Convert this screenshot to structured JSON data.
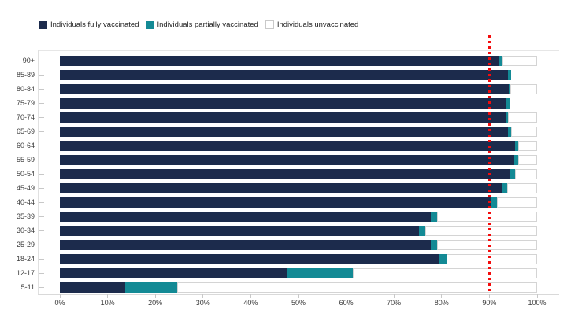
{
  "legend": {
    "items": [
      {
        "label": "Individuals fully vaccinated",
        "color": "#1c2b4c"
      },
      {
        "label": "Individuals partially vaccinated",
        "color": "#138a95"
      },
      {
        "label": "Individuals unvaccinated",
        "color": "#ffffff",
        "border": "#c9c9c9"
      }
    ]
  },
  "chart_data": {
    "type": "bar",
    "orientation": "horizontal",
    "stacked": true,
    "title": "",
    "categories": [
      "90+",
      "85-89",
      "80-84",
      "75-79",
      "70-74",
      "65-69",
      "60-64",
      "55-59",
      "50-54",
      "45-49",
      "40-44",
      "35-39",
      "30-34",
      "25-29",
      "18-24",
      "12-17",
      "5-11"
    ],
    "series": [
      {
        "name": "Individuals fully vaccinated",
        "color": "#1c2b4c",
        "values": [
          92.1,
          93.9,
          94.1,
          93.6,
          93.4,
          93.9,
          95.4,
          95.2,
          94.4,
          92.5,
          90.3,
          77.7,
          75.2,
          77.8,
          79.6,
          47.6,
          13.7
        ]
      },
      {
        "name": "Individuals partially vaccinated",
        "color": "#138a95",
        "values": [
          0.6,
          0.7,
          0.3,
          0.7,
          0.5,
          0.7,
          0.7,
          0.9,
          1.0,
          1.3,
          1.3,
          1.3,
          1.4,
          1.3,
          1.4,
          13.8,
          10.9
        ]
      },
      {
        "name": "Individuals unvaccinated",
        "color": "#ffffff",
        "values": [
          7.3,
          0,
          5.6,
          0,
          6.1,
          5.4,
          3.9,
          3.9,
          4.6,
          6.2,
          8.4,
          21.0,
          23.4,
          20.9,
          19.0,
          38.6,
          75.4
        ]
      }
    ],
    "x_ticks": [
      "0%",
      "10%",
      "20%",
      "30%",
      "40%",
      "50%",
      "60%",
      "70%",
      "80%",
      "90%",
      "100%"
    ],
    "xlim": [
      0,
      100
    ],
    "reference_line": {
      "value": 90,
      "color": "#f40b0b",
      "style": "dotted"
    },
    "legend_position": "top-left",
    "grid": false
  }
}
